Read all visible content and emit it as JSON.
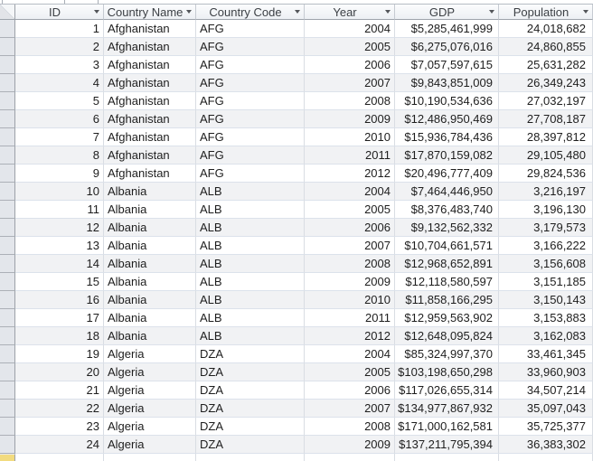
{
  "columns": [
    {
      "label": "ID"
    },
    {
      "label": "Country Name"
    },
    {
      "label": "Country Code"
    },
    {
      "label": "Year"
    },
    {
      "label": "GDP"
    },
    {
      "label": "Population"
    }
  ],
  "rows": [
    [
      "1",
      "Afghanistan",
      "AFG",
      "2004",
      "$5,285,461,999",
      "24,018,682"
    ],
    [
      "2",
      "Afghanistan",
      "AFG",
      "2005",
      "$6,275,076,016",
      "24,860,855"
    ],
    [
      "3",
      "Afghanistan",
      "AFG",
      "2006",
      "$7,057,597,615",
      "25,631,282"
    ],
    [
      "4",
      "Afghanistan",
      "AFG",
      "2007",
      "$9,843,851,009",
      "26,349,243"
    ],
    [
      "5",
      "Afghanistan",
      "AFG",
      "2008",
      "$10,190,534,636",
      "27,032,197"
    ],
    [
      "6",
      "Afghanistan",
      "AFG",
      "2009",
      "$12,486,950,469",
      "27,708,187"
    ],
    [
      "7",
      "Afghanistan",
      "AFG",
      "2010",
      "$15,936,784,436",
      "28,397,812"
    ],
    [
      "8",
      "Afghanistan",
      "AFG",
      "2011",
      "$17,870,159,082",
      "29,105,480"
    ],
    [
      "9",
      "Afghanistan",
      "AFG",
      "2012",
      "$20,496,777,409",
      "29,824,536"
    ],
    [
      "10",
      "Albania",
      "ALB",
      "2004",
      "$7,464,446,950",
      "3,216,197"
    ],
    [
      "11",
      "Albania",
      "ALB",
      "2005",
      "$8,376,483,740",
      "3,196,130"
    ],
    [
      "12",
      "Albania",
      "ALB",
      "2006",
      "$9,132,562,332",
      "3,179,573"
    ],
    [
      "13",
      "Albania",
      "ALB",
      "2007",
      "$10,704,661,571",
      "3,166,222"
    ],
    [
      "14",
      "Albania",
      "ALB",
      "2008",
      "$12,968,652,891",
      "3,156,608"
    ],
    [
      "15",
      "Albania",
      "ALB",
      "2009",
      "$12,118,580,597",
      "3,151,185"
    ],
    [
      "16",
      "Albania",
      "ALB",
      "2010",
      "$11,858,166,295",
      "3,150,143"
    ],
    [
      "17",
      "Albania",
      "ALB",
      "2011",
      "$12,959,563,902",
      "3,153,883"
    ],
    [
      "18",
      "Albania",
      "ALB",
      "2012",
      "$12,648,095,824",
      "3,162,083"
    ],
    [
      "19",
      "Algeria",
      "DZA",
      "2004",
      "$85,324,997,370",
      "33,461,345"
    ],
    [
      "20",
      "Algeria",
      "DZA",
      "2005",
      "$103,198,650,298",
      "33,960,903"
    ],
    [
      "21",
      "Algeria",
      "DZA",
      "2006",
      "$117,026,655,314",
      "34,507,214"
    ],
    [
      "22",
      "Algeria",
      "DZA",
      "2007",
      "$134,977,867,932",
      "35,097,043"
    ],
    [
      "23",
      "Algeria",
      "DZA",
      "2008",
      "$171,000,162,581",
      "35,725,377"
    ],
    [
      "24",
      "Algeria",
      "DZA",
      "2009",
      "$137,211,795,394",
      "36,383,302"
    ]
  ],
  "column_keys": [
    "id",
    "country_name",
    "country_code",
    "year",
    "gdp",
    "population"
  ],
  "icons": {
    "filter_dropdown": "dropdown-triangle",
    "select_all_corner": "diagonal-triangle"
  },
  "colors": {
    "new_record_selector": "#f2db7f",
    "alt_row": "#f1f2f4",
    "selector_column": "#e3e6eb",
    "grid_line": "#d9dde3"
  }
}
